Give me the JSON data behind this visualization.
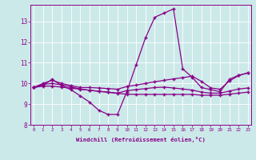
{
  "xlabel": "Windchill (Refroidissement éolien,°C)",
  "background_color": "#cce9e9",
  "line_color": "#880088",
  "x_values": [
    0,
    1,
    2,
    3,
    4,
    5,
    6,
    7,
    8,
    9,
    10,
    11,
    12,
    13,
    14,
    15,
    16,
    17,
    18,
    19,
    20,
    21,
    22,
    23
  ],
  "series1": [
    9.8,
    9.9,
    10.2,
    9.9,
    9.7,
    9.4,
    9.1,
    8.7,
    8.5,
    8.5,
    9.6,
    10.9,
    12.2,
    13.2,
    13.4,
    13.6,
    10.7,
    10.3,
    9.8,
    9.7,
    9.6,
    10.2,
    10.4,
    10.5
  ],
  "series2": [
    9.8,
    10.0,
    10.15,
    10.0,
    9.9,
    9.8,
    9.8,
    9.78,
    9.75,
    9.72,
    9.85,
    9.92,
    10.0,
    10.08,
    10.15,
    10.22,
    10.28,
    10.35,
    10.1,
    9.78,
    9.72,
    10.12,
    10.38,
    10.52
  ],
  "series3": [
    9.8,
    9.95,
    10.0,
    9.93,
    9.83,
    9.73,
    9.67,
    9.62,
    9.58,
    9.53,
    9.65,
    9.7,
    9.75,
    9.8,
    9.82,
    9.78,
    9.73,
    9.68,
    9.58,
    9.53,
    9.53,
    9.63,
    9.73,
    9.78
  ],
  "series4": [
    9.8,
    9.87,
    9.87,
    9.82,
    9.77,
    9.72,
    9.67,
    9.62,
    9.57,
    9.52,
    9.48,
    9.47,
    9.47,
    9.47,
    9.47,
    9.47,
    9.47,
    9.47,
    9.43,
    9.43,
    9.43,
    9.48,
    9.53,
    9.58
  ],
  "ylim": [
    8.0,
    13.8
  ],
  "xlim_min": -0.3,
  "xlim_max": 23.3,
  "yticks": [
    8,
    9,
    10,
    11,
    12,
    13
  ],
  "xticks": [
    0,
    1,
    2,
    3,
    4,
    5,
    6,
    7,
    8,
    9,
    10,
    11,
    12,
    13,
    14,
    15,
    16,
    17,
    18,
    19,
    20,
    21,
    22,
    23
  ]
}
